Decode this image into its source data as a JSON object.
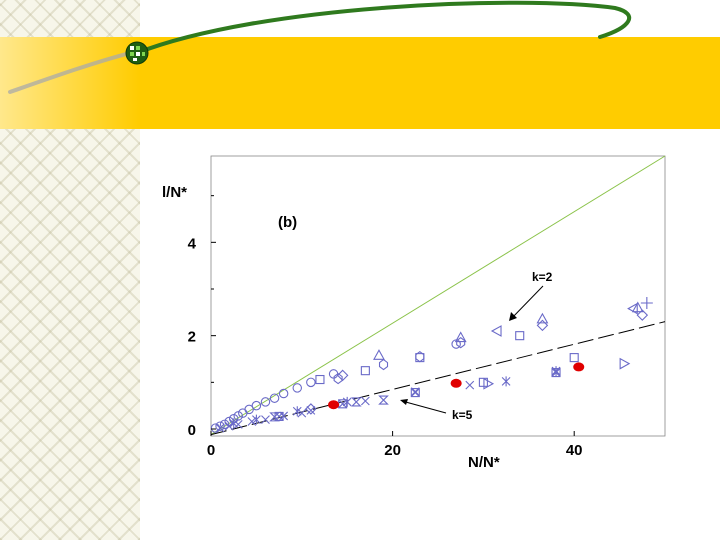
{
  "colors": {
    "band": "#ffcc00",
    "swoosh": "#2f7a1e",
    "ideal_line": "#8bc34a",
    "data_symbols": "#6a6ac8",
    "highlight": "#e00000"
  },
  "icons": [
    "globe-bullet-icon"
  ],
  "chart_data": {
    "type": "scatter",
    "panel_label": "(b)",
    "ylabel": "l/N*",
    "xlabel": "N/N*",
    "x_ticks": [
      0,
      20,
      40
    ],
    "y_ticks": [
      0,
      2,
      4
    ],
    "xlim": [
      0,
      50
    ],
    "ylim": [
      -0.15,
      5.85
    ],
    "grid": false,
    "annotations": [
      {
        "text": "k=2"
      },
      {
        "text": "k=5"
      }
    ],
    "lines": [
      {
        "kind": "solid-green",
        "x": [
          0,
          50
        ],
        "y": [
          -0.12,
          5.85
        ]
      },
      {
        "kind": "dashed",
        "x": [
          0,
          50
        ],
        "y": [
          -0.12,
          2.3
        ]
      }
    ],
    "series": [
      {
        "marker": "circle-open",
        "x": [
          0.5,
          1.0,
          1.5,
          2.0,
          2.5,
          3.0,
          3.5,
          4.2,
          5.0,
          6.0,
          7.0,
          8.0,
          9.5,
          11.0,
          13.5,
          27.0
        ],
        "y": [
          0.02,
          0.06,
          0.1,
          0.16,
          0.22,
          0.28,
          0.34,
          0.42,
          0.5,
          0.58,
          0.66,
          0.76,
          0.88,
          1.0,
          1.18,
          1.82
        ]
      },
      {
        "marker": "square-open",
        "x": [
          12.0,
          17.0,
          23.0,
          34.0,
          40.0,
          30.0
        ],
        "y": [
          1.06,
          1.25,
          1.53,
          2.0,
          1.53,
          1.0
        ]
      },
      {
        "marker": "triangle-up-open",
        "x": [
          18.5,
          27.5,
          36.5,
          47.0
        ],
        "y": [
          1.58,
          1.96,
          2.36,
          2.6
        ]
      },
      {
        "marker": "triangle-left-open",
        "x": [
          31.5,
          46.5
        ],
        "y": [
          2.1,
          2.58
        ]
      },
      {
        "marker": "triangle-right-open",
        "x": [
          45.5,
          30.5
        ],
        "y": [
          1.4,
          0.97
        ]
      },
      {
        "marker": "diamond-open",
        "x": [
          36.5,
          47.5,
          14.5,
          11.0
        ],
        "y": [
          2.22,
          2.44,
          1.15,
          0.43
        ]
      },
      {
        "marker": "hexagon-open",
        "x": [
          23.0,
          27.5,
          19.0,
          14.0
        ],
        "y": [
          1.55,
          1.85,
          1.38,
          1.08
        ]
      },
      {
        "marker": "plus",
        "x": [
          48.0
        ],
        "y": [
          2.7
        ]
      },
      {
        "marker": "cross",
        "x": [
          1.0,
          2.0,
          3.0,
          4.5,
          6.0,
          8.0,
          10.0,
          11.0,
          17.0,
          22.5,
          28.5,
          38.0
        ],
        "y": [
          0.02,
          0.06,
          0.1,
          0.16,
          0.2,
          0.28,
          0.34,
          0.4,
          0.6,
          0.8,
          0.94,
          1.24
        ]
      },
      {
        "marker": "asterisk",
        "x": [
          2.5,
          5.0,
          9.5,
          15.0,
          32.5,
          38.0
        ],
        "y": [
          0.12,
          0.2,
          0.38,
          0.58,
          1.02,
          1.24
        ]
      },
      {
        "marker": "hourglass-open",
        "x": [
          7.0,
          16.0,
          19.0
        ],
        "y": [
          0.26,
          0.58,
          0.62
        ]
      },
      {
        "marker": "square-x-open",
        "x": [
          7.5,
          14.5,
          22.5,
          38.0
        ],
        "y": [
          0.27,
          0.54,
          0.78,
          1.21
        ]
      },
      {
        "marker": "filled-dot",
        "x": [
          13.5,
          27.0,
          40.5
        ],
        "y": [
          0.52,
          0.98,
          1.33
        ]
      }
    ]
  }
}
